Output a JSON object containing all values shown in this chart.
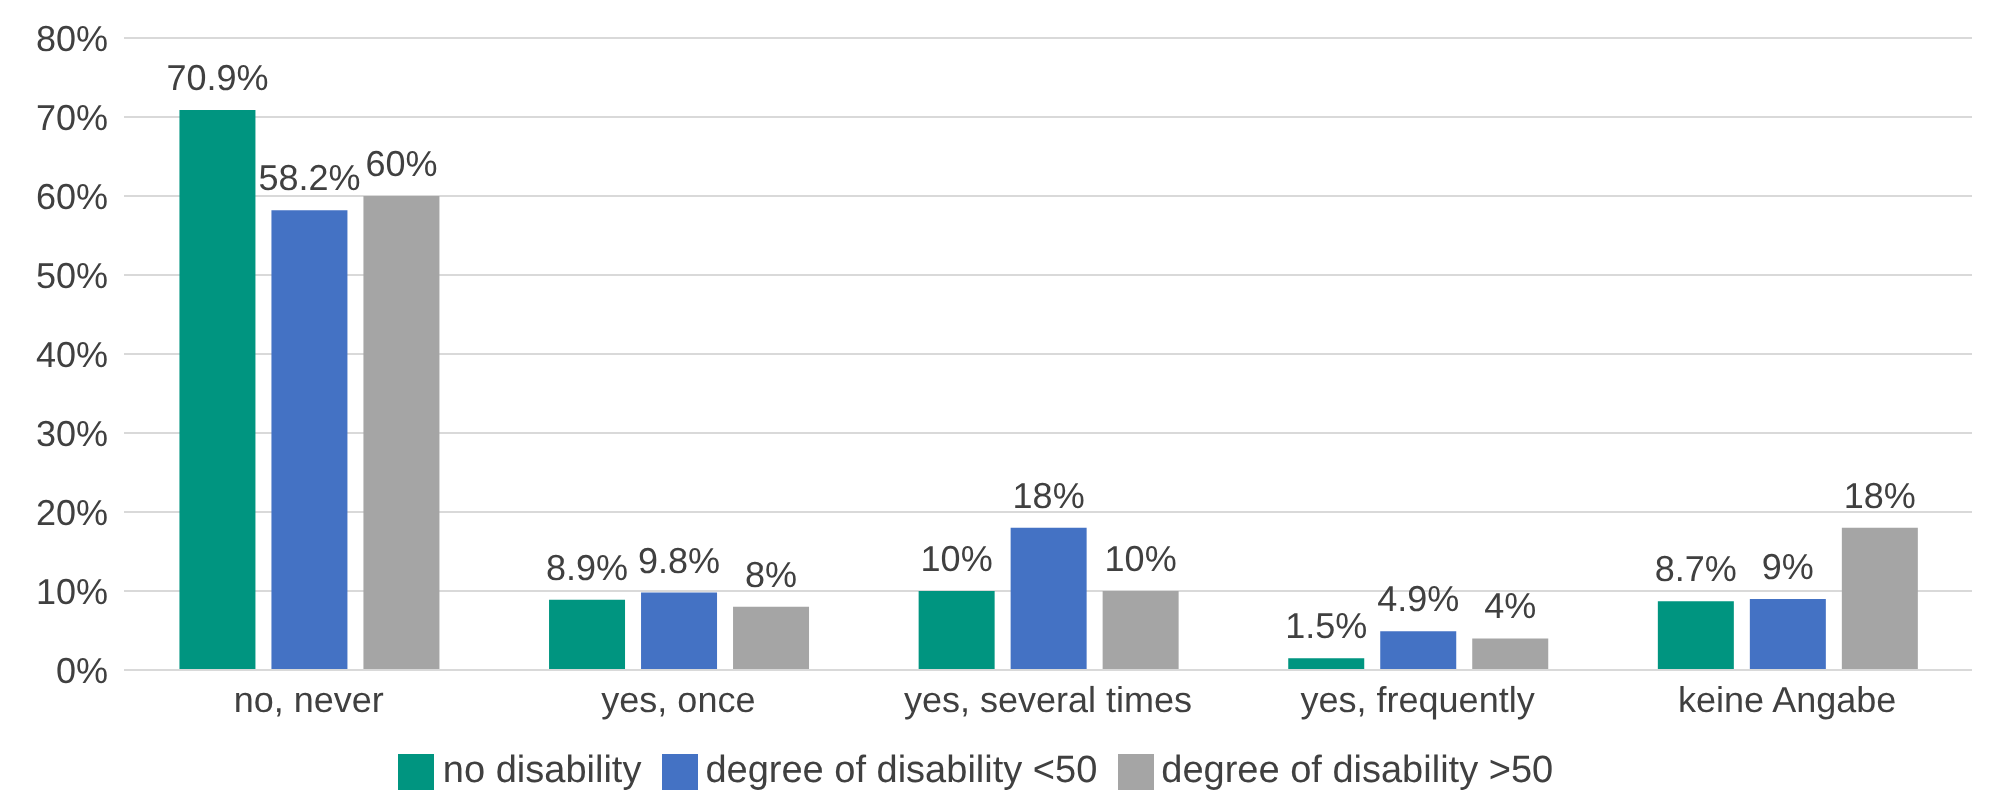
{
  "chart_data": {
    "type": "bar",
    "categories": [
      "no, never",
      "yes, once",
      "yes, several times",
      "yes, frequently",
      "keine Angabe"
    ],
    "series": [
      {
        "name": "no disability",
        "color": "#009580",
        "values": [
          70.9,
          8.9,
          10,
          1.5,
          8.7
        ],
        "value_labels": [
          "70.9%",
          "8.9%",
          "10%",
          "1.5%",
          "8.7%"
        ]
      },
      {
        "name": "degree of disability <50",
        "color": "#4472c4",
        "values": [
          58.2,
          9.8,
          18,
          4.9,
          9
        ],
        "value_labels": [
          "58.2%",
          "9.8%",
          "18%",
          "4.9%",
          "9%"
        ]
      },
      {
        "name": "degree of disability >50",
        "color": "#a5a5a5",
        "values": [
          60,
          8,
          10,
          4,
          18
        ],
        "value_labels": [
          "60%",
          "8%",
          "10%",
          "4%",
          "18%"
        ]
      }
    ],
    "ylim": [
      0,
      80
    ],
    "yticks": [
      {
        "value": 0,
        "label": "0%"
      },
      {
        "value": 10,
        "label": "10%"
      },
      {
        "value": 20,
        "label": "20%"
      },
      {
        "value": 30,
        "label": "30%"
      },
      {
        "value": 40,
        "label": "40%"
      },
      {
        "value": 50,
        "label": "50%"
      },
      {
        "value": 60,
        "label": "60%"
      },
      {
        "value": 70,
        "label": "70%"
      },
      {
        "value": 80,
        "label": "80%"
      }
    ],
    "grid": "y",
    "legend": "bottom"
  }
}
